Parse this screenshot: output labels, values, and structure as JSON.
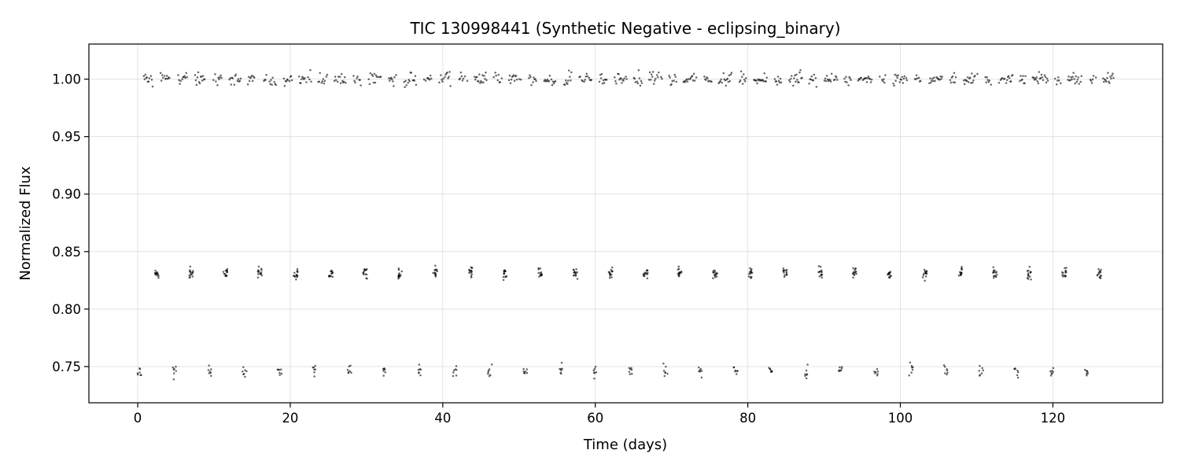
{
  "chart_data": {
    "type": "scatter",
    "title": "TIC 130998441 (Synthetic Negative - eclipsing_binary)",
    "xlabel": "Time (days)",
    "ylabel": "Normalized Flux",
    "xlim": [
      -6.4,
      134.4
    ],
    "ylim": [
      0.7185,
      1.0305
    ],
    "x_ticks": [
      0,
      20,
      40,
      60,
      80,
      100,
      120
    ],
    "x_tick_labels": [
      "0",
      "20",
      "40",
      "60",
      "80",
      "100",
      "120"
    ],
    "y_ticks": [
      0.75,
      0.8,
      0.85,
      0.9,
      0.95,
      1.0
    ],
    "y_tick_labels": [
      "0.75",
      "0.80",
      "0.85",
      "0.90",
      "0.95",
      "1.00"
    ],
    "grid": true,
    "marker_color": "#000000",
    "marker_alpha": 0.6,
    "time_span": [
      0.0,
      128.0
    ],
    "baseline": {
      "flux": 1.0,
      "scatter": 0.003
    },
    "secondary_eclipses": {
      "flux": 0.831,
      "scatter": 0.003,
      "times": [
        2.5,
        7.0,
        11.5,
        16.0,
        20.7,
        25.3,
        29.8,
        34.4,
        39.0,
        43.7,
        48.2,
        52.8,
        57.4,
        62.0,
        66.6,
        71.1,
        75.7,
        80.3,
        84.9,
        89.5,
        94.0,
        98.6,
        103.2,
        107.8,
        112.4,
        116.9,
        121.5,
        126.1
      ]
    },
    "primary_eclipses": {
      "flux": 0.746,
      "scatter": 0.003,
      "times": [
        0.2,
        4.8,
        9.4,
        14.0,
        18.6,
        23.2,
        27.8,
        32.4,
        37.0,
        41.6,
        46.2,
        50.8,
        55.4,
        60.0,
        64.6,
        69.2,
        73.8,
        78.4,
        83.0,
        87.6,
        92.2,
        96.8,
        101.4,
        106.0,
        110.6,
        115.2,
        119.8,
        124.4
      ]
    }
  }
}
